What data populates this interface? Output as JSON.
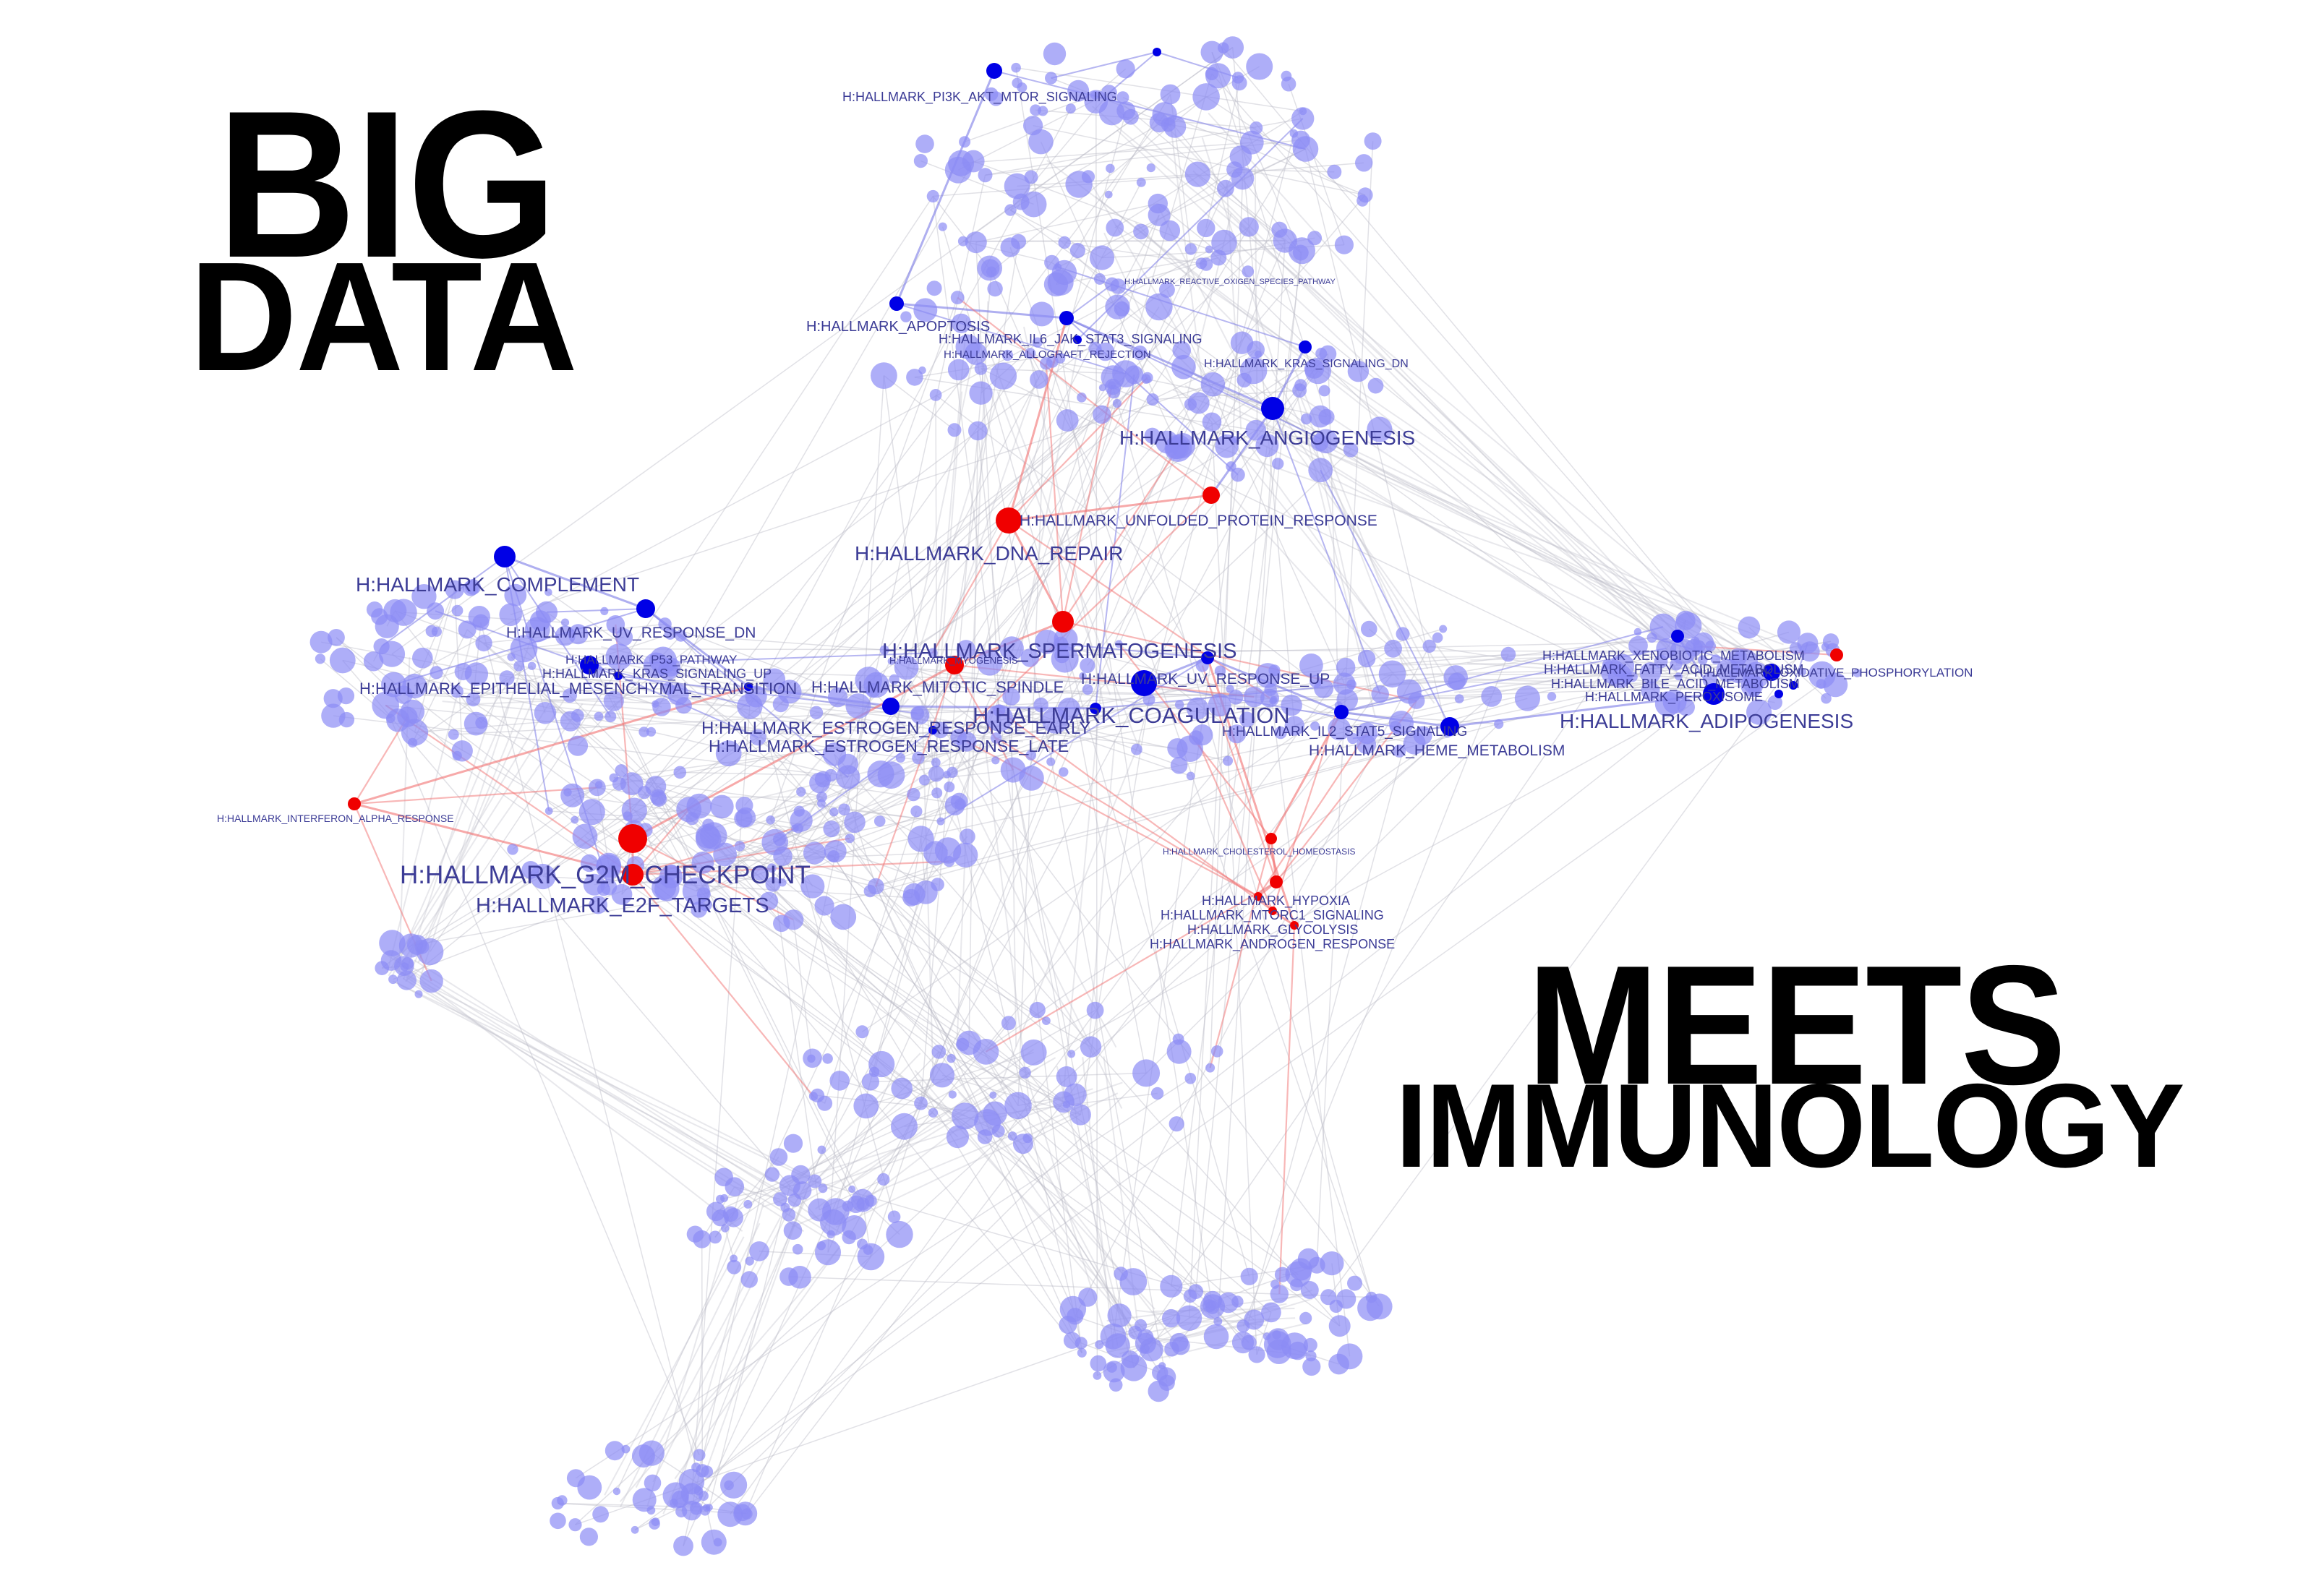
{
  "headline": {
    "line1": "BIG",
    "line2": "DATA",
    "line3": "MEETS",
    "line4": "IMMUNOLOGY"
  },
  "colors": {
    "node_default": "#8c8cf5",
    "node_highlight_blue": "#0000e6",
    "node_highlight_red": "#f00000",
    "edge_gray": "#bdbdc8",
    "edge_blue": "#7a7ae6",
    "edge_red": "#f27070",
    "label": "#3c3c96"
  },
  "network": {
    "labels": [
      "H:HALLMARK_PI3K_AKT_MTOR_SIGNALING",
      "H:HALLMARK_REACTIVE_OXIGEN_SPECIES_PATHWAY",
      "H:HALLMARK_APOPTOSIS",
      "H:HALLMARK_IL6_JAK_STAT3_SIGNALING",
      "H:HALLMARK_ALLOGRAFT_REJECTION",
      "H:HALLMARK_KRAS_SIGNALING_DN",
      "H:HALLMARK_ANGIOGENESIS",
      "H:HALLMARK_UNFOLDED_PROTEIN_RESPONSE",
      "H:HALLMARK_DNA_REPAIR",
      "H:HALLMARK_COMPLEMENT",
      "H:HALLMARK_UV_RESPONSE_DN",
      "H:HALLMARK_P53_PATHWAY",
      "H:HALLMARK_KRAS_SIGNALING_UP",
      "H:HALLMARK_EPITHELIAL_MESENCHYMAL_TRANSITION",
      "H:HALLMARK_SPERMATOGENESIS",
      "H:HALLMARK_MITOTIC_SPINDLE",
      "H:HALLMARK_MYOGENESIS",
      "H:HALLMARK_UV_RESPONSE_UP",
      "H:HALLMARK_COAGULATION",
      "H:HALLMARK_IL2_STAT5_SIGNALING",
      "H:HALLMARK_HEME_METABOLISM",
      "H:HALLMARK_ESTROGEN_RESPONSE_EARLY",
      "H:HALLMARK_ESTROGEN_RESPONSE_LATE",
      "H:HALLMARK_XENOBIOTIC_METABOLISM",
      "H:HALLMARK_FATTY_ACID_METABOLISM",
      "H:HALLMARK_OXIDATIVE_PHOSPHORYLATION",
      "H:HALLMARK_BILE_ACID_METABOLISM",
      "H:HALLMARK_PEROXISOME",
      "H:HALLMARK_ADIPOGENESIS",
      "H:HALLMARK_INTERFERON_ALPHA_RESPONSE",
      "H:HALLMARK_G2M_CHECKPOINT",
      "H:HALLMARK_E2F_TARGETS",
      "H:HALLMARK_CHOLESTEROL_HOMEOSTASIS",
      "H:HALLMARK_HYPOXIA",
      "H:HALLMARK_MTORC1_SIGNALING",
      "H:HALLMARK_GLYCOLYSIS",
      "H:HALLMARK_ANDROGEN_RESPONSE"
    ]
  }
}
